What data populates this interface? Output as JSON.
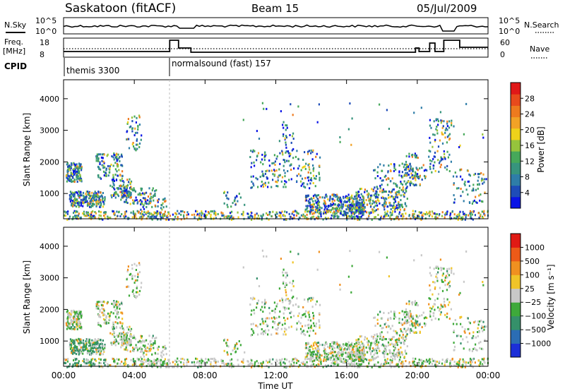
{
  "header": {
    "station": "Saskatoon (fitACF)",
    "beam": "Beam 15",
    "date": "05/Jul/2009"
  },
  "top_panels": {
    "nsky_label": "N.Sky",
    "nsky_ticks": [
      "10^5",
      "10^0"
    ],
    "nsearch_label": "N.Search",
    "nsearch_ticks": [
      "10^5",
      "10^0"
    ],
    "freq_label": "Freq.",
    "freq_unit": "[MHz]",
    "freq_ticks": [
      "18",
      "8"
    ],
    "nave_label": "Nave",
    "nave_ticks": [
      "60",
      "0"
    ],
    "cpid_label": "CPID",
    "cpid_segments": [
      {
        "label": "themis 3300",
        "start_hour": 0.0
      },
      {
        "label": "normalsound (fast) 157",
        "start_hour": 6.0
      }
    ]
  },
  "chart_data": [
    {
      "type": "heatmap",
      "ylabel": "Slant Range [km]",
      "y_ticks": [
        "1000",
        "2000",
        "3000",
        "4000"
      ],
      "ylim": [
        200,
        4600
      ],
      "xlim_hours": [
        0,
        24
      ],
      "colorbar": {
        "label": "Power [dB]",
        "ticks": [
          "4",
          "8",
          "12",
          "16",
          "20",
          "24",
          "28"
        ],
        "colors": [
          "#0a14e6",
          "#1e4cb8",
          "#2e7da8",
          "#37947d",
          "#46a85a",
          "#96c43c",
          "#eed21a",
          "#f2a226",
          "#ee7a1e",
          "#e84a1c",
          "#e01818"
        ]
      }
    },
    {
      "type": "heatmap",
      "ylabel": "Slant Range [km]",
      "y_ticks": [
        "1000",
        "2000",
        "3000",
        "4000"
      ],
      "ylim": [
        200,
        4600
      ],
      "xlim_hours": [
        0,
        24
      ],
      "colorbar": {
        "label": "Velocity [m s⁻¹]",
        "ticks": [
          "1000",
          "500",
          "100",
          "25",
          "−25",
          "−100",
          "−500",
          "−1000"
        ],
        "colors": [
          "#1c2fd8",
          "#2b6db4",
          "#35906a",
          "#3ea93a",
          "#c8c8c8",
          "#f0c428",
          "#f09020",
          "#ec5a18",
          "#e01a14"
        ]
      }
    }
  ],
  "x_axis": {
    "ticks": [
      "00:00",
      "04:00",
      "08:00",
      "12:00",
      "16:00",
      "20:00",
      "00:00"
    ],
    "label": "Time UT"
  }
}
